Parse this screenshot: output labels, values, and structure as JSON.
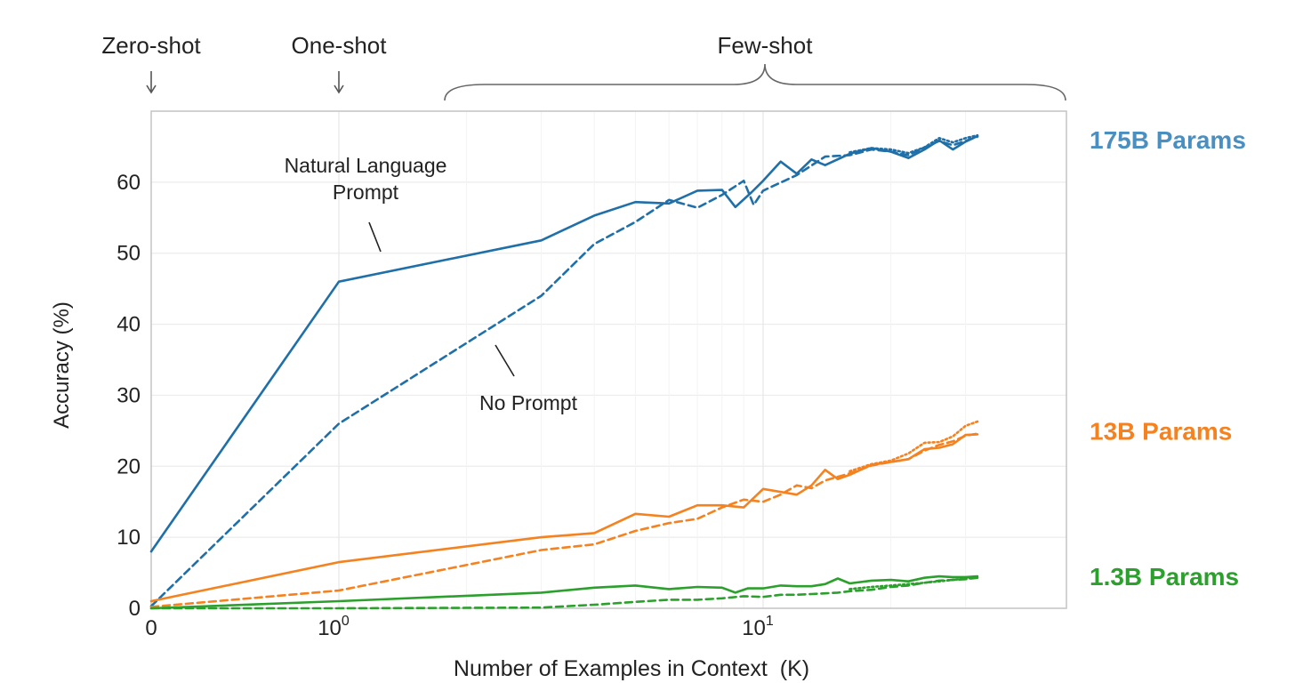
{
  "chart_data": {
    "type": "line",
    "title": "",
    "xlabel": "Number of Examples in Context  (K)",
    "ylabel": "Accuracy (%)",
    "x_scale": "symlog",
    "xlim": [
      0,
      32
    ],
    "ylim": [
      0,
      70
    ],
    "yticks": [
      0,
      10,
      20,
      30,
      40,
      50,
      60
    ],
    "xticks": [
      {
        "value": 0,
        "base": "0",
        "exp": ""
      },
      {
        "value": 1,
        "base": "10",
        "exp": "0"
      },
      {
        "value": 10,
        "base": "10",
        "exp": "1"
      }
    ],
    "grid": true,
    "regions": [
      {
        "label": "Zero-shot",
        "x": 0,
        "marker": "arrow"
      },
      {
        "label": "One-shot",
        "x": 1,
        "marker": "arrow"
      },
      {
        "label": "Few-shot",
        "x_range": [
          1.6,
          32
        ],
        "marker": "brace"
      }
    ],
    "annotations": [
      {
        "lines": [
          "Natural Language",
          "Prompt"
        ]
      },
      {
        "lines": [
          "No Prompt"
        ]
      }
    ],
    "model_labels": [
      {
        "text": "175B Params",
        "color": "#4a8fc0",
        "y": 66
      },
      {
        "text": "13B Params",
        "color": "#f5821f",
        "y": 25
      },
      {
        "text": "1.3B Params",
        "color": "#2ca02c",
        "y": 4.5
      }
    ],
    "series": [
      {
        "model": "175B",
        "style": "solid",
        "color": "#1f6fa8",
        "x": [
          0,
          1,
          3,
          4,
          5,
          6,
          7,
          8,
          8.6,
          9.4,
          10,
          11,
          12,
          13,
          14,
          16,
          18,
          20,
          22,
          24,
          26,
          28,
          30,
          32
        ],
        "y": [
          8,
          46,
          51.8,
          55.3,
          57.2,
          57,
          58.8,
          58.9,
          56.5,
          58.6,
          60.2,
          62.9,
          61.2,
          63.2,
          62.4,
          64,
          64.8,
          64.3,
          63.4,
          64.6,
          65.9,
          64.6,
          65.7,
          66.5
        ]
      },
      {
        "model": "175B",
        "style": "dashed",
        "color": "#1f6fa8",
        "x": [
          0,
          1,
          3,
          4,
          5,
          6,
          7,
          8,
          9,
          9.5,
          10,
          12,
          14,
          16,
          18,
          20,
          22,
          24,
          26,
          28,
          30,
          32
        ],
        "y": [
          0.3,
          26,
          44,
          51.3,
          54.4,
          57.5,
          56.4,
          58.2,
          60.2,
          56.8,
          58.8,
          61,
          63.6,
          63.8,
          64.6,
          64.3,
          63.8,
          64.9,
          65.8,
          65.2,
          65.8,
          66.4
        ]
      },
      {
        "model": "175B",
        "style": "dotted",
        "color": "#1f6fa8",
        "x": [
          16,
          18,
          20,
          22,
          24,
          26,
          28,
          30,
          32
        ],
        "y": [
          64.2,
          64.8,
          64.6,
          64.1,
          64.9,
          66.2,
          65.6,
          66.2,
          66.6
        ]
      },
      {
        "model": "13B",
        "style": "solid",
        "color": "#f5821f",
        "x": [
          0,
          1,
          3,
          4,
          5,
          6,
          7,
          8,
          9,
          10,
          12,
          13,
          14,
          15,
          16,
          18,
          20,
          22,
          24,
          26,
          28,
          30,
          32
        ],
        "y": [
          1,
          6.5,
          10,
          10.6,
          13.3,
          12.9,
          14.5,
          14.5,
          14.2,
          16.8,
          16,
          17.3,
          19.5,
          18.2,
          18.8,
          20.2,
          20.6,
          21,
          22.4,
          22.6,
          23.1,
          24.4,
          24.5
        ]
      },
      {
        "model": "13B",
        "style": "dashed",
        "color": "#f5821f",
        "x": [
          0,
          1,
          3,
          4,
          5,
          6,
          7,
          8,
          9,
          10,
          11,
          12,
          13,
          14,
          16,
          18,
          20,
          22,
          24,
          26,
          28,
          30,
          32
        ],
        "y": [
          0.2,
          2.5,
          8.2,
          9,
          10.9,
          12,
          12.6,
          14.2,
          15.3,
          15,
          16,
          17.3,
          16.9,
          18,
          19,
          20.1,
          20.6,
          21,
          22.2,
          23,
          23.5,
          24.3,
          24.6
        ]
      },
      {
        "model": "13B",
        "style": "dotted",
        "color": "#f5821f",
        "x": [
          16,
          18,
          20,
          22,
          24,
          26,
          28,
          30,
          32
        ],
        "y": [
          19.3,
          20.3,
          20.8,
          21.8,
          23.3,
          23.4,
          24.2,
          25.7,
          26.3
        ]
      },
      {
        "model": "1.3B",
        "style": "solid",
        "color": "#2ca02c",
        "x": [
          0,
          1,
          3,
          4,
          5,
          6,
          7,
          8,
          8.6,
          9.2,
          10,
          11,
          12,
          13,
          14,
          15,
          16,
          18,
          20,
          22,
          24,
          26,
          28,
          30,
          32
        ],
        "y": [
          0,
          1,
          2.2,
          2.9,
          3.2,
          2.7,
          3,
          2.9,
          2.2,
          2.8,
          2.8,
          3.2,
          3.1,
          3.1,
          3.4,
          4.2,
          3.5,
          3.9,
          4,
          3.8,
          4.3,
          4.5,
          4.4,
          4.4,
          4.5
        ]
      },
      {
        "model": "1.3B",
        "style": "dashed",
        "color": "#2ca02c",
        "x": [
          0,
          1,
          3,
          4,
          5,
          6,
          7,
          8,
          9,
          10,
          11,
          12,
          13,
          14,
          15,
          16,
          18,
          20,
          22,
          24,
          26,
          28,
          30,
          32
        ],
        "y": [
          0,
          0,
          0.1,
          0.5,
          0.9,
          1.2,
          1.2,
          1.4,
          1.7,
          1.6,
          1.9,
          1.9,
          2,
          2.1,
          2.2,
          2.4,
          2.6,
          3,
          3.2,
          3.6,
          3.9,
          4,
          4.1,
          4.3
        ]
      },
      {
        "model": "1.3B",
        "style": "dotted",
        "color": "#2ca02c",
        "x": [
          16,
          18,
          20,
          22,
          24,
          26,
          28,
          30,
          32
        ],
        "y": [
          2.7,
          3,
          3.2,
          3.4,
          3.6,
          3.8,
          4,
          4.2,
          4.3
        ]
      }
    ]
  }
}
